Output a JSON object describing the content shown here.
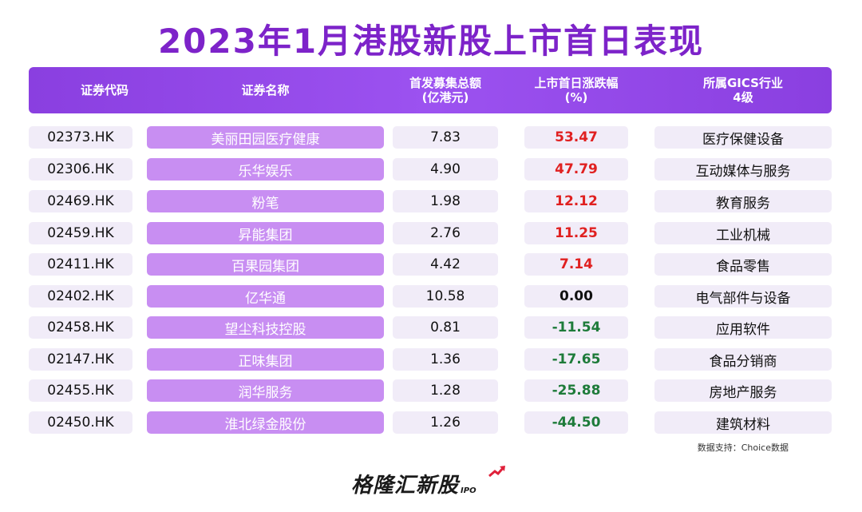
{
  "title": "2023年1月港股新股上市首日表现",
  "headers": {
    "code": "证券代码",
    "name": "证券名称",
    "amount_line1": "首发募集总额",
    "amount_line2": "(亿港元)",
    "change_line1": "上市首日涨跌幅",
    "change_line2": "(%)",
    "industry_line1": "所属GICS行业",
    "industry_line2": "4级"
  },
  "rows": [
    {
      "code": "02373.HK",
      "name": "美丽田园医疗健康",
      "amount": "7.83",
      "change": "53.47",
      "industry": "医疗保健设备"
    },
    {
      "code": "02306.HK",
      "name": "乐华娱乐",
      "amount": "4.90",
      "change": "47.79",
      "industry": "互动媒体与服务"
    },
    {
      "code": "02469.HK",
      "name": "粉笔",
      "amount": "1.98",
      "change": "12.12",
      "industry": "教育服务"
    },
    {
      "code": "02459.HK",
      "name": "昇能集团",
      "amount": "2.76",
      "change": "11.25",
      "industry": "工业机械"
    },
    {
      "code": "02411.HK",
      "name": "百果园集团",
      "amount": "4.42",
      "change": "7.14",
      "industry": "食品零售"
    },
    {
      "code": "02402.HK",
      "name": "亿华通",
      "amount": "10.58",
      "change": "0.00",
      "industry": "电气部件与设备"
    },
    {
      "code": "02458.HK",
      "name": "望尘科技控股",
      "amount": "0.81",
      "change": "-11.54",
      "industry": "应用软件"
    },
    {
      "code": "02147.HK",
      "name": "正味集团",
      "amount": "1.36",
      "change": "-17.65",
      "industry": "食品分销商"
    },
    {
      "code": "02455.HK",
      "name": "润华服务",
      "amount": "1.28",
      "change": "-25.88",
      "industry": "房地产服务"
    },
    {
      "code": "02450.HK",
      "name": "淮北绿金股份",
      "amount": "1.26",
      "change": "-44.50",
      "industry": "建筑材料"
    }
  ],
  "colors": {
    "positive": "#e02020",
    "zero": "#111111",
    "negative": "#1e7b3a"
  },
  "source": "数据支持：Choice数据",
  "logo": {
    "text": "格隆汇新股",
    "sub": "IPO"
  }
}
